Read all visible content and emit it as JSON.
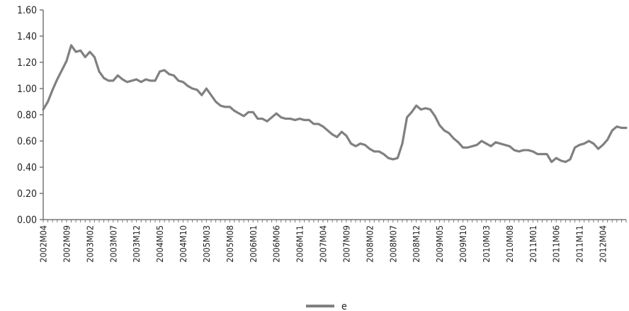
{
  "chart_data": {
    "type": "line",
    "title": "",
    "xlabel": "",
    "ylabel": "",
    "ylim": [
      0,
      1.6
    ],
    "y_ticks": [
      "0.00",
      "0.20",
      "0.40",
      "0.60",
      "0.80",
      "1.00",
      "1.20",
      "1.40",
      "1.60"
    ],
    "x_tick_labels": [
      "2002M04",
      "2002M09",
      "2003M02",
      "2003M07",
      "2003M12",
      "2004M05",
      "2004M10",
      "2005M03",
      "2005M08",
      "2006M01",
      "2006M06",
      "2006M11",
      "2007M04",
      "2007M09",
      "2008M02",
      "2008M07",
      "2008M12",
      "2009M05",
      "2009M10",
      "2010M03",
      "2010M08",
      "2011M01",
      "2011M06",
      "2011M11",
      "2012M04"
    ],
    "x_start": "2002M04",
    "x_end": "2012M10",
    "grid": false,
    "legend_position": "bottom-center",
    "series": [
      {
        "name": "e",
        "color": "#808080",
        "values": [
          0.84,
          0.9,
          0.99,
          1.07,
          1.14,
          1.21,
          1.33,
          1.28,
          1.29,
          1.24,
          1.28,
          1.24,
          1.13,
          1.08,
          1.06,
          1.06,
          1.1,
          1.07,
          1.05,
          1.06,
          1.07,
          1.05,
          1.07,
          1.06,
          1.06,
          1.13,
          1.14,
          1.11,
          1.1,
          1.06,
          1.05,
          1.02,
          1.0,
          0.99,
          0.95,
          1.0,
          0.95,
          0.9,
          0.87,
          0.86,
          0.86,
          0.83,
          0.81,
          0.79,
          0.82,
          0.82,
          0.77,
          0.77,
          0.75,
          0.78,
          0.81,
          0.78,
          0.77,
          0.77,
          0.76,
          0.77,
          0.76,
          0.76,
          0.73,
          0.73,
          0.71,
          0.68,
          0.65,
          0.63,
          0.67,
          0.64,
          0.58,
          0.56,
          0.58,
          0.57,
          0.54,
          0.52,
          0.52,
          0.5,
          0.47,
          0.46,
          0.47,
          0.58,
          0.78,
          0.82,
          0.87,
          0.84,
          0.85,
          0.84,
          0.79,
          0.72,
          0.68,
          0.66,
          0.62,
          0.59,
          0.55,
          0.55,
          0.56,
          0.57,
          0.6,
          0.58,
          0.56,
          0.59,
          0.58,
          0.57,
          0.56,
          0.53,
          0.52,
          0.53,
          0.53,
          0.52,
          0.5,
          0.5,
          0.5,
          0.44,
          0.47,
          0.45,
          0.44,
          0.46,
          0.55,
          0.57,
          0.58,
          0.6,
          0.58,
          0.54,
          0.57,
          0.61,
          0.68,
          0.71,
          0.7,
          0.7
        ]
      }
    ]
  }
}
